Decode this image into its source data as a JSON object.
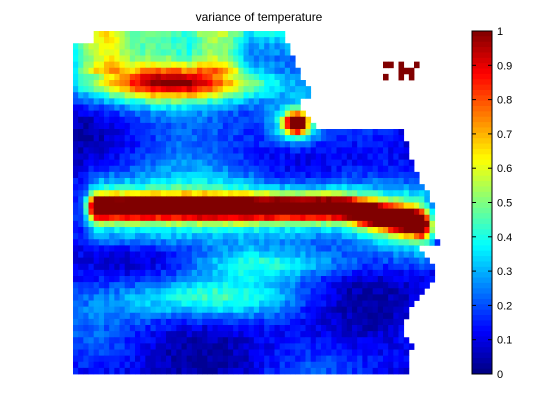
{
  "chart_data": {
    "type": "heatmap",
    "title": "variance of temperature",
    "xlabel": "",
    "ylabel": "",
    "colormap": "jet",
    "clim": [
      0,
      1
    ],
    "colorbar": {
      "location": "right",
      "ticks": [
        0,
        0.1,
        0.2,
        0.3,
        0.4,
        0.5,
        0.6,
        0.7,
        0.8,
        0.9,
        1
      ],
      "tick_labels": [
        "0",
        "0.1",
        "0.2",
        "0.3",
        "0.4",
        "0.5",
        "0.6",
        "0.7",
        "0.8",
        "0.9",
        "1"
      ]
    },
    "grid_size": [
      56,
      72
    ],
    "missing_value_color": "#ffffff",
    "features": [
      {
        "kind": "band",
        "description": "equatorial high-variance band",
        "row": 0.515,
        "col_start": 0.07,
        "col_end": 0.93,
        "width_rows": 0.035,
        "value": 1.0
      },
      {
        "kind": "band",
        "description": "northern warm band",
        "row": 0.15,
        "col_start": 0.05,
        "col_end": 0.52,
        "width_rows": 0.05,
        "value": 0.75
      },
      {
        "kind": "spot",
        "description": "coastal hot spot",
        "row": 0.27,
        "col": 0.6,
        "value": 1.0
      },
      {
        "kind": "spot",
        "description": "north-east coastal hot spot",
        "row": 0.18,
        "col": 0.97,
        "value": 1.0
      }
    ],
    "background_range": [
      0.05,
      0.35
    ]
  }
}
